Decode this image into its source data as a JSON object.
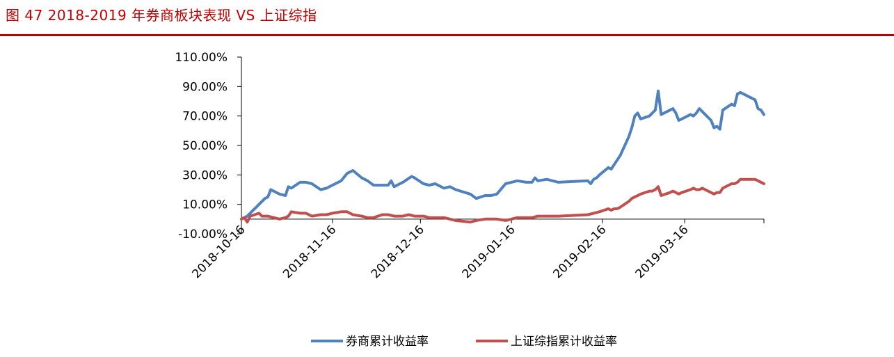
{
  "figure": {
    "title": "图 47   2018-2019 年券商板块表现 VS 上证综指"
  },
  "colors": {
    "title": "#c00000",
    "rule": "#c00000",
    "axis": "#000000"
  },
  "chart_data": {
    "type": "line",
    "title": "",
    "xlabel": "",
    "ylabel": "",
    "ylim": [
      -0.1,
      1.1
    ],
    "xlim": [
      "2018-10-16",
      "2019-04-12"
    ],
    "y_ticks": [
      -0.1,
      0.1,
      0.3,
      0.5,
      0.7,
      0.9,
      1.1
    ],
    "y_tick_labels": [
      "-10.00%",
      "10.00%",
      "30.00%",
      "50.00%",
      "70.00%",
      "90.00%",
      "110.00%"
    ],
    "x_ticks": [
      "2018-10-16",
      "2018-11-16",
      "2018-12-16",
      "2019-01-16",
      "2019-02-16",
      "2019-03-16"
    ],
    "x_tick_labels": [
      "2018-10-16",
      "2018-11-16",
      "2018-12-16",
      "2019-01-16",
      "2019-02-16",
      "2019-03-16"
    ],
    "grid": false,
    "legend_position": "bottom",
    "series": [
      {
        "name": "券商累计收益率",
        "color": "#4f81bd",
        "points": [
          [
            "2018-10-16",
            0.0
          ],
          [
            "2018-10-18",
            0.02
          ],
          [
            "2018-10-22",
            0.1
          ],
          [
            "2018-10-24",
            0.14
          ],
          [
            "2018-10-25",
            0.15
          ],
          [
            "2018-10-26",
            0.2
          ],
          [
            "2018-10-29",
            0.17
          ],
          [
            "2018-10-31",
            0.16
          ],
          [
            "2018-11-01",
            0.22
          ],
          [
            "2018-11-02",
            0.21
          ],
          [
            "2018-11-05",
            0.25
          ],
          [
            "2018-11-07",
            0.25
          ],
          [
            "2018-11-09",
            0.24
          ],
          [
            "2018-11-12",
            0.2
          ],
          [
            "2018-11-14",
            0.21
          ],
          [
            "2018-11-16",
            0.23
          ],
          [
            "2018-11-19",
            0.26
          ],
          [
            "2018-11-21",
            0.31
          ],
          [
            "2018-11-23",
            0.33
          ],
          [
            "2018-11-26",
            0.28
          ],
          [
            "2018-11-28",
            0.26
          ],
          [
            "2018-11-30",
            0.23
          ],
          [
            "2018-12-03",
            0.23
          ],
          [
            "2018-12-05",
            0.23
          ],
          [
            "2018-12-06",
            0.26
          ],
          [
            "2018-12-07",
            0.22
          ],
          [
            "2018-12-10",
            0.25
          ],
          [
            "2018-12-13",
            0.29
          ],
          [
            "2018-12-14",
            0.28
          ],
          [
            "2018-12-17",
            0.24
          ],
          [
            "2018-12-19",
            0.23
          ],
          [
            "2018-12-21",
            0.24
          ],
          [
            "2018-12-24",
            0.21
          ],
          [
            "2018-12-26",
            0.22
          ],
          [
            "2018-12-28",
            0.2
          ],
          [
            "2019-01-02",
            0.17
          ],
          [
            "2019-01-04",
            0.14
          ],
          [
            "2019-01-07",
            0.16
          ],
          [
            "2019-01-09",
            0.16
          ],
          [
            "2019-01-11",
            0.17
          ],
          [
            "2019-01-14",
            0.24
          ],
          [
            "2019-01-16",
            0.25
          ],
          [
            "2019-01-18",
            0.26
          ],
          [
            "2019-01-21",
            0.25
          ],
          [
            "2019-01-23",
            0.25
          ],
          [
            "2019-01-24",
            0.28
          ],
          [
            "2019-01-25",
            0.26
          ],
          [
            "2019-01-28",
            0.27
          ],
          [
            "2019-01-30",
            0.26
          ],
          [
            "2019-02-01",
            0.25
          ],
          [
            "2019-02-11",
            0.26
          ],
          [
            "2019-02-12",
            0.24
          ],
          [
            "2019-02-13",
            0.27
          ],
          [
            "2019-02-14",
            0.28
          ],
          [
            "2019-02-15",
            0.3
          ],
          [
            "2019-02-18",
            0.35
          ],
          [
            "2019-02-19",
            0.34
          ],
          [
            "2019-02-20",
            0.37
          ],
          [
            "2019-02-21",
            0.4
          ],
          [
            "2019-02-22",
            0.43
          ],
          [
            "2019-02-25",
            0.56
          ],
          [
            "2019-02-26",
            0.62
          ],
          [
            "2019-02-27",
            0.7
          ],
          [
            "2019-02-28",
            0.72
          ],
          [
            "2019-03-01",
            0.68
          ],
          [
            "2019-03-04",
            0.7
          ],
          [
            "2019-03-05",
            0.72
          ],
          [
            "2019-03-06",
            0.74
          ],
          [
            "2019-03-07",
            0.87
          ],
          [
            "2019-03-08",
            0.71
          ],
          [
            "2019-03-11",
            0.74
          ],
          [
            "2019-03-12",
            0.75
          ],
          [
            "2019-03-13",
            0.72
          ],
          [
            "2019-03-14",
            0.67
          ],
          [
            "2019-03-15",
            0.68
          ],
          [
            "2019-03-18",
            0.71
          ],
          [
            "2019-03-19",
            0.7
          ],
          [
            "2019-03-20",
            0.72
          ],
          [
            "2019-03-21",
            0.75
          ],
          [
            "2019-03-22",
            0.73
          ],
          [
            "2019-03-25",
            0.67
          ],
          [
            "2019-03-26",
            0.62
          ],
          [
            "2019-03-27",
            0.63
          ],
          [
            "2019-03-28",
            0.61
          ],
          [
            "2019-03-29",
            0.74
          ],
          [
            "2019-04-01",
            0.78
          ],
          [
            "2019-04-02",
            0.77
          ],
          [
            "2019-04-03",
            0.85
          ],
          [
            "2019-04-04",
            0.86
          ],
          [
            "2019-04-08",
            0.82
          ],
          [
            "2019-04-09",
            0.81
          ],
          [
            "2019-04-10",
            0.75
          ],
          [
            "2019-04-11",
            0.74
          ],
          [
            "2019-04-12",
            0.71
          ]
        ]
      },
      {
        "name": "上证综指累计收益率",
        "color": "#c0504d",
        "points": [
          [
            "2018-10-16",
            0.0
          ],
          [
            "2018-10-17",
            0.01
          ],
          [
            "2018-10-18",
            -0.02
          ],
          [
            "2018-10-19",
            0.02
          ],
          [
            "2018-10-22",
            0.04
          ],
          [
            "2018-10-23",
            0.02
          ],
          [
            "2018-10-25",
            0.02
          ],
          [
            "2018-10-29",
            0.0
          ],
          [
            "2018-10-31",
            0.01
          ],
          [
            "2018-11-01",
            0.02
          ],
          [
            "2018-11-02",
            0.05
          ],
          [
            "2018-11-05",
            0.04
          ],
          [
            "2018-11-07",
            0.04
          ],
          [
            "2018-11-09",
            0.02
          ],
          [
            "2018-11-12",
            0.03
          ],
          [
            "2018-11-14",
            0.03
          ],
          [
            "2018-11-16",
            0.04
          ],
          [
            "2018-11-19",
            0.05
          ],
          [
            "2018-11-21",
            0.05
          ],
          [
            "2018-11-23",
            0.03
          ],
          [
            "2018-11-26",
            0.02
          ],
          [
            "2018-11-28",
            0.01
          ],
          [
            "2018-11-30",
            0.01
          ],
          [
            "2018-12-03",
            0.03
          ],
          [
            "2018-12-05",
            0.03
          ],
          [
            "2018-12-07",
            0.02
          ],
          [
            "2018-12-10",
            0.02
          ],
          [
            "2018-12-12",
            0.03
          ],
          [
            "2018-12-14",
            0.02
          ],
          [
            "2018-12-17",
            0.02
          ],
          [
            "2018-12-19",
            0.01
          ],
          [
            "2018-12-21",
            0.01
          ],
          [
            "2018-12-24",
            0.01
          ],
          [
            "2018-12-26",
            0.0
          ],
          [
            "2018-12-28",
            -0.01
          ],
          [
            "2019-01-02",
            -0.02
          ],
          [
            "2019-01-04",
            -0.01
          ],
          [
            "2019-01-07",
            0.0
          ],
          [
            "2019-01-09",
            0.0
          ],
          [
            "2019-01-11",
            0.0
          ],
          [
            "2019-01-14",
            -0.01
          ],
          [
            "2019-01-16",
            0.0
          ],
          [
            "2019-01-18",
            0.01
          ],
          [
            "2019-01-21",
            0.01
          ],
          [
            "2019-01-23",
            0.01
          ],
          [
            "2019-01-25",
            0.02
          ],
          [
            "2019-01-28",
            0.02
          ],
          [
            "2019-01-30",
            0.02
          ],
          [
            "2019-02-01",
            0.02
          ],
          [
            "2019-02-11",
            0.03
          ],
          [
            "2019-02-13",
            0.04
          ],
          [
            "2019-02-15",
            0.05
          ],
          [
            "2019-02-18",
            0.07
          ],
          [
            "2019-02-19",
            0.06
          ],
          [
            "2019-02-20",
            0.07
          ],
          [
            "2019-02-21",
            0.07
          ],
          [
            "2019-02-22",
            0.08
          ],
          [
            "2019-02-25",
            0.12
          ],
          [
            "2019-02-26",
            0.14
          ],
          [
            "2019-02-27",
            0.15
          ],
          [
            "2019-02-28",
            0.16
          ],
          [
            "2019-03-01",
            0.17
          ],
          [
            "2019-03-04",
            0.19
          ],
          [
            "2019-03-05",
            0.19
          ],
          [
            "2019-03-06",
            0.2
          ],
          [
            "2019-03-07",
            0.22
          ],
          [
            "2019-03-08",
            0.16
          ],
          [
            "2019-03-11",
            0.18
          ],
          [
            "2019-03-12",
            0.19
          ],
          [
            "2019-03-13",
            0.18
          ],
          [
            "2019-03-14",
            0.17
          ],
          [
            "2019-03-15",
            0.18
          ],
          [
            "2019-03-18",
            0.2
          ],
          [
            "2019-03-19",
            0.21
          ],
          [
            "2019-03-20",
            0.2
          ],
          [
            "2019-03-21",
            0.2
          ],
          [
            "2019-03-22",
            0.21
          ],
          [
            "2019-03-25",
            0.18
          ],
          [
            "2019-03-26",
            0.17
          ],
          [
            "2019-03-27",
            0.18
          ],
          [
            "2019-03-28",
            0.18
          ],
          [
            "2019-03-29",
            0.21
          ],
          [
            "2019-04-01",
            0.24
          ],
          [
            "2019-04-02",
            0.24
          ],
          [
            "2019-04-03",
            0.25
          ],
          [
            "2019-04-04",
            0.27
          ],
          [
            "2019-04-08",
            0.27
          ],
          [
            "2019-04-09",
            0.27
          ],
          [
            "2019-04-10",
            0.26
          ],
          [
            "2019-04-11",
            0.25
          ],
          [
            "2019-04-12",
            0.24
          ]
        ]
      }
    ]
  }
}
